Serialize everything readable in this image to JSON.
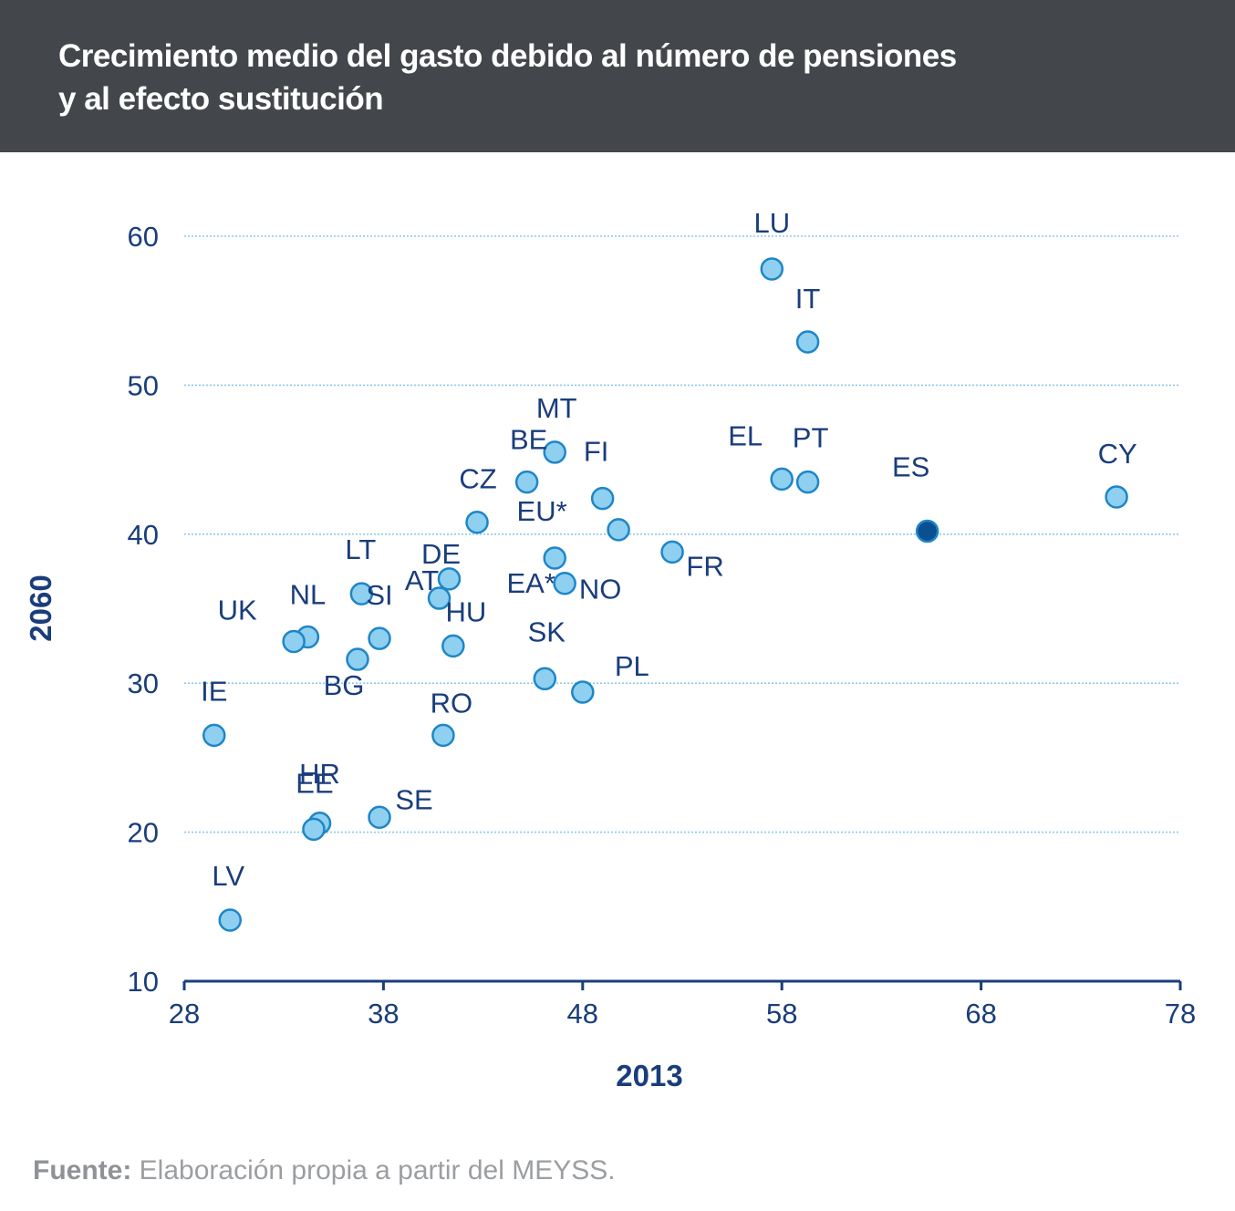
{
  "header": {
    "title_line1": "Crecimiento medio del gasto debido al número de pensiones",
    "title_line2": "y al efecto sustitución"
  },
  "source": {
    "label": "Fuente:",
    "text": " Elaboración propia a partir del MEYSS."
  },
  "colors": {
    "header_bg": "#43474b",
    "point_fill": "#8fd0f0",
    "point_stroke": "#1e86c8",
    "highlight_fill": "#0a4f8f",
    "axis": "#1a3d7c",
    "grid": "#8ec9e8"
  },
  "chart_data": {
    "type": "scatter",
    "xlabel": "2013",
    "ylabel": "2060",
    "xlim": [
      28,
      78
    ],
    "ylim": [
      10,
      60
    ],
    "xticks": [
      28,
      38,
      48,
      58,
      68,
      78
    ],
    "yticks": [
      10,
      20,
      30,
      40,
      50,
      60
    ],
    "grid": "horizontal dotted",
    "points": [
      {
        "label": "LU",
        "x": 57.5,
        "y": 57.8
      },
      {
        "label": "IT",
        "x": 59.3,
        "y": 52.9
      },
      {
        "label": "MT",
        "x": 46.6,
        "y": 45.5
      },
      {
        "label": "BE",
        "x": 45.2,
        "y": 43.5
      },
      {
        "label": "FI",
        "x": 49.0,
        "y": 42.4
      },
      {
        "label": "EL",
        "x": 58.0,
        "y": 43.7
      },
      {
        "label": "PT",
        "x": 59.3,
        "y": 43.5
      },
      {
        "label": "ES",
        "x": 65.3,
        "y": 40.2,
        "highlight": true
      },
      {
        "label": "CY",
        "x": 74.8,
        "y": 42.5
      },
      {
        "label": "CZ",
        "x": 42.7,
        "y": 40.8
      },
      {
        "label": "EU*",
        "x": 49.8,
        "y": 40.3
      },
      {
        "label": "AT",
        "x": 41.3,
        "y": 37.0
      },
      {
        "label": "DE",
        "x": 40.8,
        "y": 35.7
      },
      {
        "label": "EA*",
        "x": 46.6,
        "y": 38.4
      },
      {
        "label": "NO",
        "x": 47.1,
        "y": 36.7
      },
      {
        "label": "FR",
        "x": 52.5,
        "y": 38.8
      },
      {
        "label": "LT",
        "x": 36.9,
        "y": 36.0
      },
      {
        "label": "SI",
        "x": 37.8,
        "y": 33.0
      },
      {
        "label": "NL",
        "x": 34.2,
        "y": 33.1
      },
      {
        "label": "UK",
        "x": 33.5,
        "y": 32.8
      },
      {
        "label": "BG",
        "x": 36.7,
        "y": 31.6
      },
      {
        "label": "HU",
        "x": 41.5,
        "y": 32.5
      },
      {
        "label": "SK",
        "x": 46.1,
        "y": 30.3
      },
      {
        "label": "PL",
        "x": 48.0,
        "y": 29.4
      },
      {
        "label": "IE",
        "x": 29.5,
        "y": 26.5
      },
      {
        "label": "RO",
        "x": 41.0,
        "y": 26.5
      },
      {
        "label": "HR",
        "x": 34.8,
        "y": 20.6
      },
      {
        "label": "EE",
        "x": 34.5,
        "y": 20.2
      },
      {
        "label": "SE",
        "x": 37.8,
        "y": 21.0
      },
      {
        "label": "LV",
        "x": 30.3,
        "y": 14.1
      }
    ]
  }
}
